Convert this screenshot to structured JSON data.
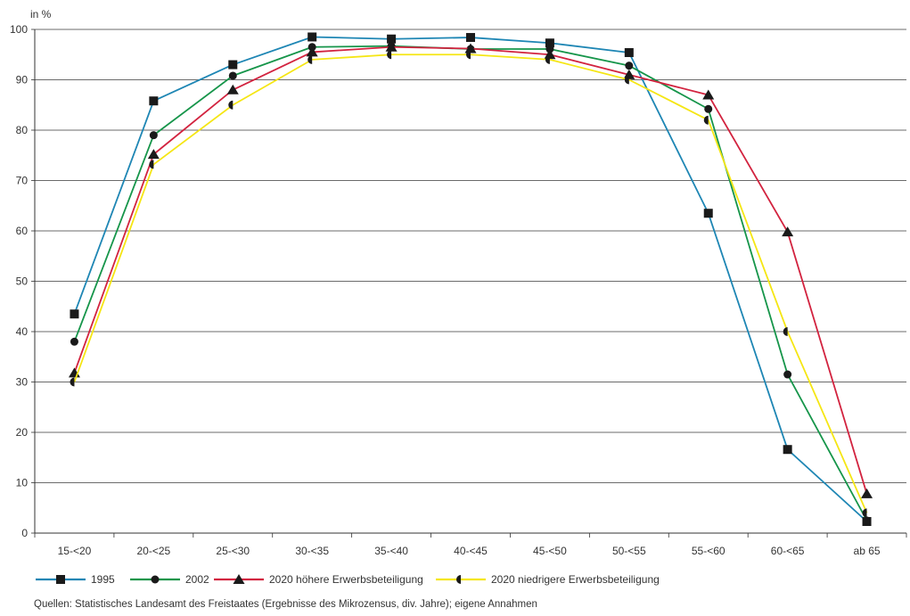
{
  "chart_data": {
    "type": "line",
    "ylabel": "in %",
    "ylim": [
      0,
      100
    ],
    "yticks": [
      0,
      10,
      20,
      30,
      40,
      50,
      60,
      70,
      80,
      90,
      100
    ],
    "categories": [
      "15-<20",
      "20-<25",
      "25-<30",
      "30-<35",
      "35-<40",
      "40-<45",
      "45-<50",
      "50-<55",
      "55-<60",
      "60-<65",
      "ab 65"
    ],
    "grid": true,
    "legend_position": "bottom",
    "series": [
      {
        "name": "1995",
        "color": "#1e86b4",
        "marker": "square",
        "values": [
          43.5,
          85.8,
          93,
          98.5,
          98.1,
          98.4,
          97.3,
          95.4,
          63.5,
          16.6,
          2.3
        ]
      },
      {
        "name": "2002",
        "color": "#16954a",
        "marker": "circle",
        "values": [
          38,
          79,
          90.8,
          96.5,
          96.7,
          96.1,
          96.1,
          92.8,
          84.2,
          31.5,
          2.5
        ]
      },
      {
        "name": "2020 höhere Erwerbsbeteiligung",
        "color": "#d2233f",
        "marker": "triangle",
        "values": [
          31.8,
          75.2,
          88,
          95.5,
          96.5,
          96.2,
          95,
          91,
          87,
          59.8,
          7.8
        ]
      },
      {
        "name": "2020 niedrigere Erwerbsbeteiligung",
        "color": "#f5e614",
        "marker": "halfcircle",
        "values": [
          30,
          73.2,
          85,
          94,
          95,
          95,
          94,
          90,
          82,
          40,
          4
        ]
      }
    ]
  },
  "source": "Quellen: Statistisches Landesamt des Freistaates (Ergebnisse des Mikrozensus, div. Jahre); eigene Annahmen"
}
